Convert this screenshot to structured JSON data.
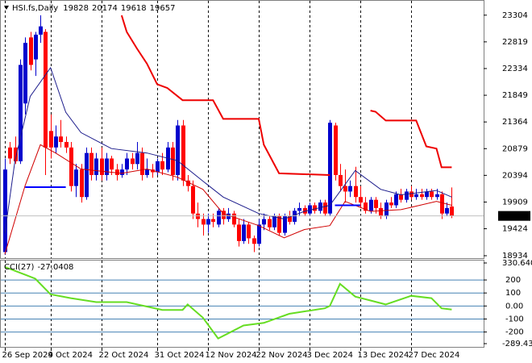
{
  "chart_data": {
    "type": "candlestick",
    "symbol": "HSI.fs,Daily",
    "categories": [
      "26 Sep 2024",
      null,
      null,
      null,
      null,
      null,
      null,
      null,
      null,
      "9 Oct 2024",
      null,
      null,
      null,
      null,
      null,
      null,
      null,
      null,
      null,
      "22 Oct 2024",
      null,
      null,
      null,
      null,
      null,
      null,
      null,
      null,
      null,
      null,
      "31 Oct 2024",
      null,
      null,
      null,
      null,
      null,
      null,
      null,
      null,
      null,
      "12 Nov 2024",
      null,
      null,
      null,
      null,
      null,
      null,
      null,
      null,
      null,
      "22 Nov 2024",
      null,
      null,
      null,
      null,
      null,
      null,
      null,
      null,
      null,
      "3 Dec 2024",
      null,
      null,
      null,
      null,
      null,
      null,
      null,
      null,
      null,
      "13 Dec 2024",
      null,
      null,
      null,
      null,
      null,
      null,
      null,
      null,
      null,
      "27 Dec 2024",
      null,
      null,
      null,
      null,
      null,
      null,
      null,
      null
    ],
    "open": [
      19000,
      20900,
      20900,
      20650,
      21700,
      22900,
      22500,
      22950,
      23000,
      21200,
      20900,
      21100,
      21000,
      20900,
      20200,
      20500,
      20000,
      20800,
      20400,
      20700,
      20400,
      20700,
      20500,
      20400,
      20500,
      20700,
      20600,
      20800,
      20400,
      20500,
      20450,
      20650,
      20500,
      20900,
      20400,
      21300,
      20300,
      20200,
      19700,
      19600,
      19500,
      19600,
      19500,
      19750,
      19600,
      19700,
      19500,
      19200,
      19500,
      19250,
      19150,
      19500,
      19600,
      19450,
      19650,
      19350,
      19650,
      19550,
      19750,
      19800,
      19700,
      19850,
      19750,
      19900,
      19700,
      21300,
      20400,
      20200,
      20100,
      20200,
      20000,
      19900,
      19750,
      19950,
      19800,
      19650,
      19900,
      19850,
      20050,
      19950,
      20100,
      20000,
      20050,
      20000,
      20100,
      20000,
      20050,
      19700,
      19828
    ],
    "high": [
      20700,
      21000,
      21100,
      22500,
      22900,
      23000,
      23000,
      23300,
      23050,
      21500,
      21300,
      21400,
      21100,
      21000,
      20600,
      20600,
      20900,
      20900,
      20800,
      20900,
      20800,
      20750,
      20600,
      20600,
      20800,
      20800,
      21000,
      20900,
      20700,
      20600,
      20700,
      20800,
      21000,
      21000,
      21400,
      21400,
      20400,
      20300,
      19900,
      19700,
      19700,
      19700,
      19800,
      19800,
      19800,
      19750,
      19600,
      19600,
      19550,
      19300,
      19600,
      19700,
      19650,
      19700,
      19700,
      19700,
      19750,
      19800,
      19900,
      19850,
      19900,
      19900,
      19950,
      19950,
      21400,
      21350,
      20600,
      20500,
      20300,
      20550,
      20200,
      20000,
      20000,
      20000,
      19900,
      19950,
      20000,
      20100,
      20150,
      20150,
      20200,
      20150,
      20150,
      20150,
      20150,
      20150,
      20100,
      19900,
      20174
    ],
    "low": [
      18950,
      20600,
      20600,
      20600,
      21500,
      22300,
      22200,
      22800,
      20400,
      20700,
      20800,
      20900,
      20800,
      20100,
      20000,
      19900,
      19950,
      20300,
      20300,
      20300,
      20300,
      20400,
      20300,
      20350,
      20400,
      20500,
      20500,
      20300,
      20350,
      20350,
      20400,
      20400,
      20450,
      20300,
      20300,
      20200,
      20100,
      19600,
      19450,
      19300,
      19350,
      19450,
      19450,
      19500,
      19550,
      19450,
      19100,
      19150,
      19150,
      19000,
      19100,
      19400,
      19400,
      19400,
      19300,
      19300,
      19500,
      19500,
      19650,
      19650,
      19650,
      19700,
      19700,
      19650,
      19650,
      20300,
      20100,
      19900,
      20000,
      19900,
      19800,
      19700,
      19700,
      19700,
      19600,
      19600,
      19800,
      19800,
      19900,
      19900,
      19950,
      19950,
      19950,
      19950,
      19950,
      19950,
      19600,
      19650,
      19618
    ],
    "close": [
      20500,
      20700,
      20650,
      22400,
      22800,
      22400,
      22950,
      23100,
      20900,
      20900,
      21100,
      21000,
      20900,
      20200,
      20500,
      20000,
      20800,
      20400,
      20700,
      20400,
      20700,
      20500,
      20400,
      20500,
      20700,
      20600,
      20800,
      20400,
      20500,
      20450,
      20650,
      20500,
      20900,
      20400,
      21300,
      20300,
      20200,
      19700,
      19600,
      19500,
      19600,
      19550,
      19750,
      19600,
      19700,
      19500,
      19200,
      19500,
      19250,
      19150,
      19500,
      19600,
      19450,
      19650,
      19350,
      19650,
      19550,
      19750,
      19800,
      19700,
      19850,
      19750,
      19900,
      19700,
      21350,
      20400,
      20200,
      20100,
      20200,
      20000,
      19900,
      19750,
      19950,
      19800,
      19650,
      19900,
      19850,
      20050,
      19950,
      20100,
      20000,
      20050,
      20000,
      20100,
      20000,
      20050,
      19700,
      19800,
      19657
    ],
    "up_color": "#0000cd",
    "down_color": "#ff0000",
    "ylim": [
      18890,
      23550
    ],
    "yticks": [
      23304,
      22819,
      22334,
      21849,
      21364,
      20879,
      20394,
      19909,
      19424,
      18934
    ],
    "grid": true,
    "overlays": [
      {
        "color": "#1c1c8c",
        "width": 1,
        "x": [
          0,
          2,
          5,
          9,
          12,
          15,
          21,
          28,
          34,
          39,
          43,
          50,
          55,
          59,
          64,
          69,
          74,
          78,
          85,
          88
        ],
        "values": [
          19340,
          20660,
          21830,
          22350,
          21540,
          21170,
          20880,
          20800,
          20660,
          20290,
          20000,
          19700,
          19600,
          19740,
          19850,
          20480,
          20140,
          20040,
          20120,
          20000
        ]
      },
      {
        "color": "#d00000",
        "width": 1,
        "x": [
          0,
          4,
          7,
          10,
          15,
          23,
          28,
          34,
          39,
          43,
          50,
          55,
          59,
          64,
          67,
          72,
          78,
          85,
          88
        ],
        "values": [
          18960,
          20210,
          20950,
          20800,
          20510,
          20430,
          20510,
          20360,
          20140,
          19700,
          19480,
          19260,
          19410,
          19480,
          19920,
          19740,
          19770,
          19920,
          19850
        ]
      },
      {
        "color": "#ee0000",
        "width": 2,
        "x": [
          23,
          24,
          26,
          28,
          30,
          32,
          35,
          41,
          43,
          50,
          51,
          54,
          64,
          68,
          72,
          73,
          75,
          81,
          83,
          85,
          86,
          88
        ],
        "values": [
          23300,
          23000,
          22700,
          22420,
          22050,
          21980,
          21760,
          21760,
          21420,
          21420,
          20950,
          20430,
          20400,
          null,
          21570,
          21550,
          21390,
          21390,
          20920,
          20880,
          20540,
          20540
        ]
      },
      {
        "color": "#0000ff",
        "width": 2,
        "x": [
          4,
          12,
          40,
          65,
          70
        ],
        "values": [
          20180,
          20180,
          null,
          19850,
          19850
        ]
      }
    ],
    "cci": {
      "type": "line",
      "label": "CCI(27)",
      "color": "#66dd22",
      "x": [
        0,
        4,
        6,
        9,
        13,
        18,
        24,
        31,
        35,
        36,
        39,
        42,
        44,
        47,
        51,
        56,
        63,
        64,
        66,
        69,
        72,
        75,
        80,
        84,
        86,
        88
      ],
      "values": [
        300,
        240,
        210,
        90,
        60,
        30,
        30,
        -30,
        -30,
        12,
        -90,
        -250,
        -210,
        -150,
        -130,
        -60,
        -18,
        0,
        170,
        72,
        42,
        12,
        78,
        60,
        -18,
        -27.0408
      ],
      "ylim": [
        -289.4334,
        330.6408
      ],
      "yticks": [
        330.6408,
        200,
        100,
        {
          "value": 0,
          "label": "0.00"
        },
        -100,
        -200,
        -289.4334
      ]
    }
  }
}
